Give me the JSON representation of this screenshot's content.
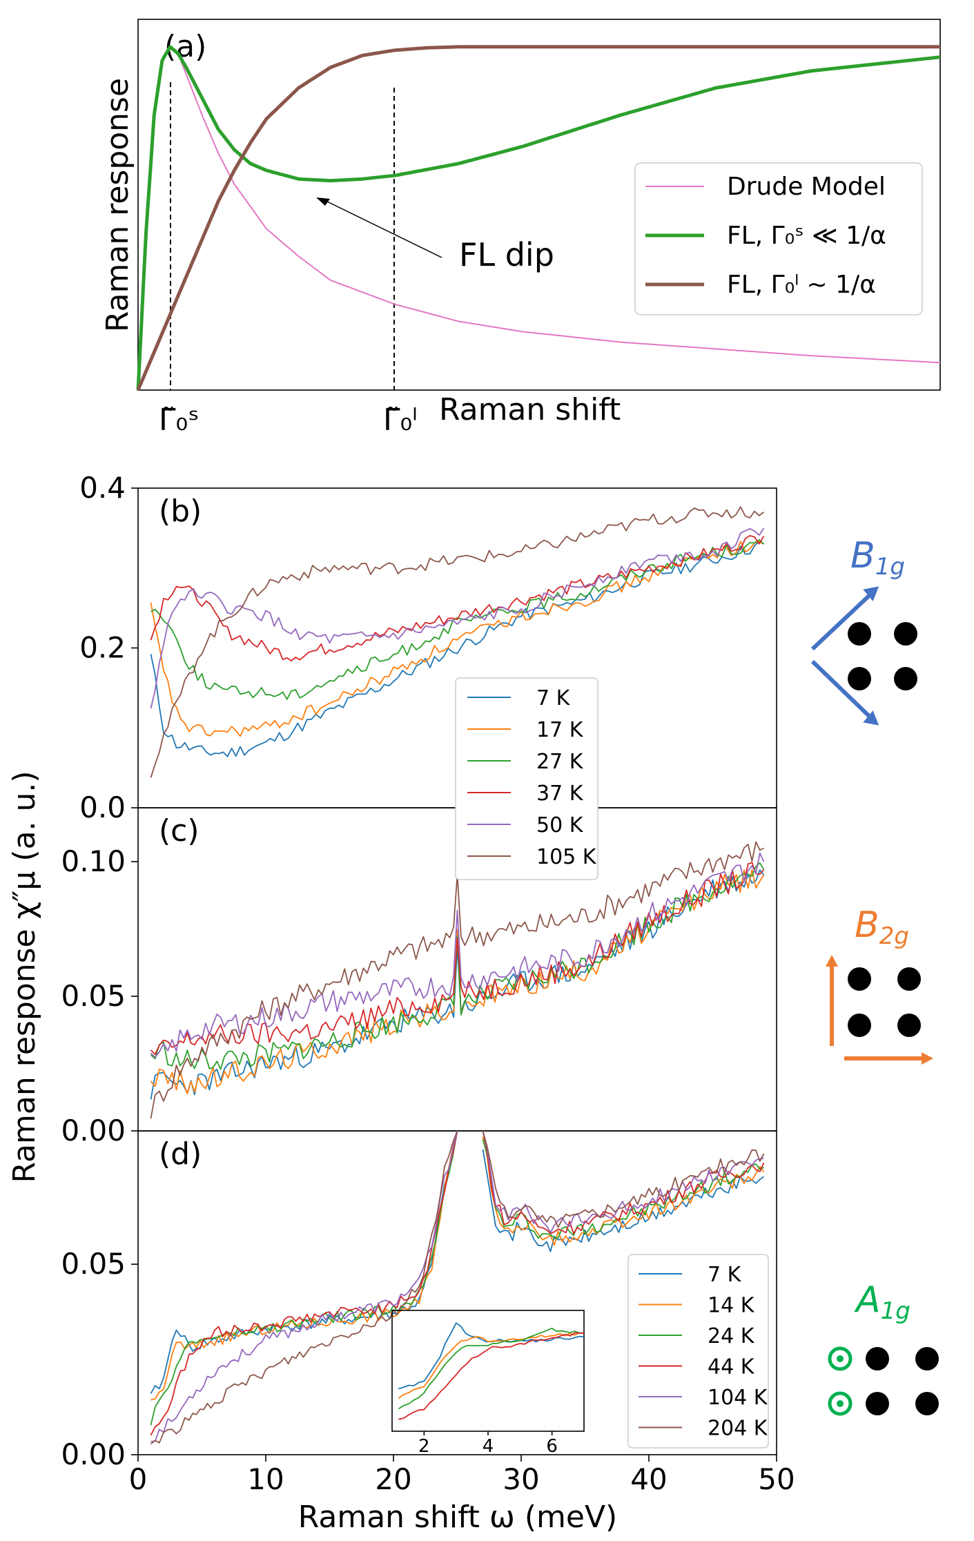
{
  "chart_data": [
    {
      "panel": "(a)",
      "type": "line",
      "title": "",
      "xlabel": "Raman shift",
      "ylabel": "Raman response",
      "xlim": [
        0,
        25
      ],
      "ylim": [
        0,
        1.1
      ],
      "xticks": [
        "Γ̃₀ˢ",
        "Γ̃₀ˡ"
      ],
      "xtick_values": [
        1,
        8
      ],
      "annotation": "FL dip",
      "annotation_xy": [
        5.5,
        0.6
      ],
      "legend": {
        "position": "center-right",
        "entries": [
          "Drude Model",
          "FL, Γ₀ˢ ≪ 1/α",
          "FL, Γ₀ˡ ~ 1/α"
        ]
      },
      "series": [
        {
          "name": "Drude Model",
          "color": "#e377c2",
          "width": 2,
          "x": [
            0,
            0.25,
            0.5,
            0.75,
            1,
            1.25,
            1.5,
            2,
            2.5,
            3,
            4,
            5,
            6,
            8,
            10,
            12,
            15,
            18,
            21,
            25
          ],
          "y": [
            0,
            0.46,
            0.8,
            0.96,
            1.0,
            0.98,
            0.92,
            0.8,
            0.69,
            0.6,
            0.47,
            0.39,
            0.32,
            0.25,
            0.2,
            0.17,
            0.14,
            0.12,
            0.1,
            0.08
          ]
        },
        {
          "name": "FL, Γ₀ˢ ≪ 1/α",
          "color": "#2ca02c",
          "width": 5,
          "x": [
            0,
            0.25,
            0.5,
            0.75,
            1,
            1.25,
            1.5,
            2,
            2.5,
            3,
            3.5,
            4,
            5,
            6,
            7,
            8,
            10,
            12,
            15,
            18,
            21,
            25
          ],
          "y": [
            0,
            0.46,
            0.8,
            0.96,
            1.0,
            0.98,
            0.94,
            0.85,
            0.76,
            0.7,
            0.66,
            0.64,
            0.615,
            0.61,
            0.615,
            0.625,
            0.66,
            0.71,
            0.8,
            0.88,
            0.93,
            0.97
          ]
        },
        {
          "name": "FL, Γ₀ˡ ~ 1/α",
          "color": "#8c564b",
          "width": 5,
          "x": [
            0,
            0.5,
            1,
            1.5,
            2,
            2.5,
            3,
            3.5,
            4,
            5,
            6,
            7,
            8,
            9,
            10,
            12,
            15,
            20,
            25
          ],
          "y": [
            0,
            0.11,
            0.22,
            0.33,
            0.44,
            0.55,
            0.64,
            0.72,
            0.79,
            0.88,
            0.94,
            0.975,
            0.99,
            0.997,
            1.0,
            1.0,
            1.0,
            1.0,
            1.0
          ]
        }
      ]
    },
    {
      "panel": "(b)",
      "type": "line",
      "symmetry_label": "B1g",
      "xlim": [
        0,
        50
      ],
      "ylim": [
        0,
        0.4
      ],
      "yticks": [
        "0.0",
        "0.2",
        "0.4"
      ],
      "ytick_values": [
        0.0,
        0.2,
        0.4
      ],
      "legend": {
        "position": "center",
        "entries": [
          "7 K",
          "17 K",
          "27 K",
          "37 K",
          "50 K",
          "105 K"
        ]
      },
      "series": [
        {
          "name": "7 K",
          "color": "#1f77b4",
          "x": [
            1,
            2,
            3,
            5,
            7,
            10,
            15,
            20,
            25,
            30,
            35,
            40,
            45,
            49
          ],
          "y": [
            0.19,
            0.1,
            0.08,
            0.07,
            0.068,
            0.08,
            0.12,
            0.16,
            0.2,
            0.24,
            0.26,
            0.29,
            0.31,
            0.33
          ]
        },
        {
          "name": "17 K",
          "color": "#ff7f0e",
          "x": [
            1,
            2,
            3,
            4,
            5,
            7,
            10,
            15,
            20,
            25,
            30,
            35,
            40,
            45,
            49
          ],
          "y": [
            0.25,
            0.17,
            0.12,
            0.1,
            0.095,
            0.095,
            0.1,
            0.13,
            0.17,
            0.21,
            0.24,
            0.26,
            0.29,
            0.32,
            0.33
          ]
        },
        {
          "name": "27 K",
          "color": "#2ca02c",
          "x": [
            1,
            2,
            3,
            4,
            5,
            7,
            10,
            12,
            15,
            20,
            25,
            30,
            35,
            40,
            45,
            49
          ],
          "y": [
            0.25,
            0.24,
            0.21,
            0.18,
            0.16,
            0.145,
            0.145,
            0.14,
            0.16,
            0.19,
            0.23,
            0.25,
            0.27,
            0.3,
            0.32,
            0.33
          ]
        },
        {
          "name": "37 K",
          "color": "#d62728",
          "x": [
            1,
            2,
            3,
            5,
            7,
            10,
            12,
            15,
            20,
            25,
            30,
            35,
            40,
            45,
            49
          ],
          "y": [
            0.21,
            0.26,
            0.28,
            0.26,
            0.22,
            0.2,
            0.19,
            0.2,
            0.22,
            0.24,
            0.26,
            0.28,
            0.3,
            0.32,
            0.34
          ]
        },
        {
          "name": "50 K",
          "color": "#9467bd",
          "x": [
            1,
            2,
            3,
            5,
            7,
            10,
            12,
            15,
            20,
            25,
            30,
            35,
            40,
            45,
            49
          ],
          "y": [
            0.12,
            0.21,
            0.26,
            0.27,
            0.25,
            0.24,
            0.22,
            0.21,
            0.215,
            0.23,
            0.25,
            0.28,
            0.31,
            0.32,
            0.35
          ]
        },
        {
          "name": "105 K",
          "color": "#8c564b",
          "x": [
            1,
            2,
            3,
            5,
            7,
            10,
            12,
            15,
            20,
            25,
            30,
            35,
            40,
            45,
            49
          ],
          "y": [
            0.045,
            0.09,
            0.13,
            0.2,
            0.24,
            0.28,
            0.29,
            0.3,
            0.3,
            0.31,
            0.32,
            0.34,
            0.36,
            0.37,
            0.37
          ]
        }
      ]
    },
    {
      "panel": "(c)",
      "type": "line",
      "symmetry_label": "B2g",
      "xlim": [
        0,
        50
      ],
      "ylim": [
        0,
        0.12
      ],
      "yticks": [
        "0.00",
        "0.05",
        "0.10"
      ],
      "ytick_values": [
        0.0,
        0.05,
        0.1
      ],
      "series": [
        {
          "name": "7 K",
          "color": "#1f77b4",
          "x": [
            1,
            2,
            3,
            5,
            10,
            15,
            20,
            25,
            30,
            35,
            40,
            45,
            49
          ],
          "y": [
            0.015,
            0.02,
            0.017,
            0.018,
            0.025,
            0.03,
            0.04,
            0.045,
            0.055,
            0.06,
            0.075,
            0.09,
            0.095
          ]
        },
        {
          "name": "17 K",
          "color": "#ff7f0e",
          "x": [
            1,
            2,
            3,
            5,
            10,
            15,
            20,
            25,
            30,
            35,
            40,
            45,
            49
          ],
          "y": [
            0.02,
            0.02,
            0.018,
            0.018,
            0.025,
            0.032,
            0.04,
            0.046,
            0.054,
            0.06,
            0.075,
            0.09,
            0.095
          ]
        },
        {
          "name": "27 K",
          "color": "#2ca02c",
          "x": [
            1,
            2,
            3,
            5,
            10,
            15,
            20,
            25,
            30,
            35,
            40,
            45,
            49
          ],
          "y": [
            0.028,
            0.03,
            0.026,
            0.026,
            0.028,
            0.033,
            0.04,
            0.047,
            0.055,
            0.062,
            0.077,
            0.09,
            0.097
          ]
        },
        {
          "name": "37 K",
          "color": "#d62728",
          "x": [
            1,
            2,
            3,
            5,
            10,
            15,
            20,
            25,
            30,
            35,
            40,
            45,
            49
          ],
          "y": [
            0.028,
            0.03,
            0.032,
            0.035,
            0.036,
            0.038,
            0.045,
            0.05,
            0.056,
            0.062,
            0.078,
            0.09,
            0.097
          ]
        },
        {
          "name": "50 K",
          "color": "#9467bd",
          "x": [
            1,
            2,
            3,
            5,
            10,
            15,
            20,
            25,
            30,
            35,
            40,
            45,
            49
          ],
          "y": [
            0.025,
            0.028,
            0.033,
            0.038,
            0.042,
            0.048,
            0.052,
            0.055,
            0.06,
            0.065,
            0.08,
            0.092,
            0.1
          ]
        },
        {
          "name": "105 K",
          "color": "#8c564b",
          "x": [
            1,
            2,
            3,
            5,
            10,
            15,
            20,
            25,
            30,
            35,
            40,
            45,
            49
          ],
          "y": [
            0.008,
            0.015,
            0.022,
            0.03,
            0.045,
            0.055,
            0.065,
            0.072,
            0.075,
            0.08,
            0.09,
            0.1,
            0.105
          ]
        }
      ],
      "spike_x": 25
    },
    {
      "panel": "(d)",
      "type": "line",
      "symmetry_label": "A1g",
      "xlabel": "Raman shift ω (meV)",
      "ylabel": "Raman response χ″μ (a. u.)",
      "xlim": [
        0,
        50
      ],
      "ylim": [
        0,
        0.085
      ],
      "xticks": [
        "0",
        "10",
        "20",
        "30",
        "40",
        "50"
      ],
      "xtick_values": [
        0,
        10,
        20,
        30,
        40,
        50
      ],
      "yticks": [
        "0.00",
        "0.05"
      ],
      "ytick_values": [
        0.0,
        0.05
      ],
      "legend": {
        "position": "right",
        "entries": [
          "7 K",
          "14 K",
          "24 K",
          "44 K",
          "104 K",
          "204 K"
        ]
      },
      "series": [
        {
          "name": "7 K",
          "color": "#1f77b4",
          "x": [
            1,
            2,
            3,
            4,
            6,
            10,
            15,
            20,
            22,
            23,
            24,
            25
          ],
          "y": [
            0.015,
            0.02,
            0.034,
            0.028,
            0.03,
            0.033,
            0.035,
            0.037,
            0.04,
            0.05,
            0.07,
            0.085
          ]
        },
        {
          "name": "14 K",
          "color": "#ff7f0e",
          "x": [
            1,
            2,
            3,
            4,
            6,
            10,
            15,
            20,
            22,
            23,
            24,
            25
          ],
          "y": [
            0.013,
            0.018,
            0.029,
            0.028,
            0.03,
            0.033,
            0.035,
            0.037,
            0.04,
            0.05,
            0.07,
            0.085
          ]
        },
        {
          "name": "24 K",
          "color": "#2ca02c",
          "x": [
            1,
            2,
            3,
            4,
            6,
            10,
            15,
            20,
            22,
            23,
            24,
            25
          ],
          "y": [
            0.009,
            0.015,
            0.024,
            0.029,
            0.031,
            0.033,
            0.036,
            0.038,
            0.042,
            0.052,
            0.07,
            0.085
          ]
        },
        {
          "name": "44 K",
          "color": "#d62728",
          "x": [
            1,
            2,
            3,
            4,
            6,
            10,
            15,
            20,
            22,
            23,
            24,
            25
          ],
          "y": [
            0.006,
            0.01,
            0.018,
            0.026,
            0.032,
            0.034,
            0.037,
            0.039,
            0.043,
            0.053,
            0.07,
            0.085
          ]
        },
        {
          "name": "104 K",
          "color": "#9467bd",
          "x": [
            1,
            2,
            3,
            4,
            6,
            10,
            15,
            20,
            22,
            23,
            24,
            25
          ],
          "y": [
            0.004,
            0.007,
            0.01,
            0.015,
            0.022,
            0.03,
            0.036,
            0.04,
            0.045,
            0.055,
            0.072,
            0.085
          ]
        },
        {
          "name": "204 K",
          "color": "#8c564b",
          "x": [
            1,
            2,
            3,
            4,
            6,
            10,
            15,
            20,
            22,
            23,
            24,
            25
          ],
          "y": [
            0.003,
            0.005,
            0.007,
            0.009,
            0.014,
            0.022,
            0.03,
            0.037,
            0.044,
            0.057,
            0.075,
            0.085
          ]
        }
      ],
      "right_segment": {
        "x": [
          27,
          28,
          29,
          30,
          31,
          32,
          35,
          40,
          45,
          49
        ],
        "y": [
          0.085,
          0.065,
          0.06,
          0.063,
          0.06,
          0.058,
          0.06,
          0.065,
          0.072,
          0.076
        ]
      },
      "inset": {
        "xlim": [
          1,
          7
        ],
        "xticks": [
          "2",
          "4",
          "6"
        ],
        "xtick_values": [
          2,
          4,
          6
        ],
        "series": [
          {
            "name": "7 K",
            "color": "#1f77b4",
            "x": [
              1.2,
              2,
              2.5,
              3,
              3.3,
              3.8,
              4.5,
              5.5,
              7
            ],
            "y": [
              0.015,
              0.017,
              0.024,
              0.033,
              0.03,
              0.028,
              0.028,
              0.028,
              0.029
            ]
          },
          {
            "name": "14 K",
            "color": "#ff7f0e",
            "x": [
              1.2,
              2,
              2.5,
              3,
              3.5,
              4,
              4.5,
              5.5,
              7
            ],
            "y": [
              0.013,
              0.016,
              0.022,
              0.027,
              0.029,
              0.028,
              0.028,
              0.029,
              0.03
            ]
          },
          {
            "name": "24 K",
            "color": "#2ca02c",
            "x": [
              1.2,
              2,
              2.5,
              3,
              3.5,
              4,
              5,
              6,
              7
            ],
            "y": [
              0.01,
              0.014,
              0.02,
              0.025,
              0.027,
              0.027,
              0.028,
              0.031,
              0.03
            ]
          },
          {
            "name": "44 K",
            "color": "#d62728",
            "x": [
              1.2,
              2,
              2.5,
              3,
              3.5,
              4,
              5,
              6,
              7
            ],
            "y": [
              0.007,
              0.01,
              0.014,
              0.019,
              0.023,
              0.026,
              0.027,
              0.029,
              0.03
            ]
          }
        ]
      }
    }
  ]
}
